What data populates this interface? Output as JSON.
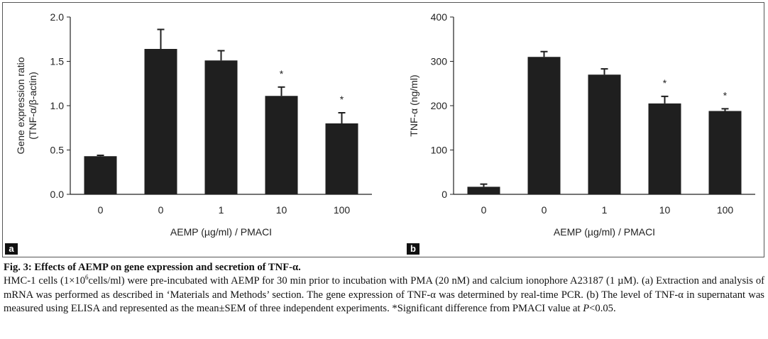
{
  "figure": {
    "panel_a_label": "a",
    "panel_b_label": "b"
  },
  "chart_data": [
    {
      "type": "bar",
      "panel": "a",
      "categories": [
        "0",
        "0",
        "1",
        "10",
        "100"
      ],
      "values": [
        0.43,
        1.64,
        1.51,
        1.11,
        0.8
      ],
      "errors": [
        0.01,
        0.22,
        0.11,
        0.1,
        0.12
      ],
      "significance": [
        "",
        "",
        "",
        "*",
        "*"
      ],
      "xlabel": "AEMP (µg/ml) / PMACI",
      "ylabel": [
        "Gene expression ratio",
        "(TNF-α/β-actin)"
      ],
      "ylim": [
        0,
        2.0
      ],
      "yticks": [
        "0.0",
        "0.5",
        "1.0",
        "1.5",
        "2.0"
      ],
      "bar_color": "#1f1f1f",
      "grid": false,
      "legend": "none"
    },
    {
      "type": "bar",
      "panel": "b",
      "categories": [
        "0",
        "0",
        "1",
        "10",
        "100"
      ],
      "values": [
        17,
        310,
        270,
        205,
        188
      ],
      "errors": [
        6,
        12,
        13,
        16,
        5
      ],
      "significance": [
        "",
        "",
        "",
        "*",
        "*"
      ],
      "xlabel": "AEMP (µg/ml) / PMACI",
      "ylabel": [
        "TNF-α (ng/ml)"
      ],
      "ylim": [
        0,
        400
      ],
      "yticks": [
        "0",
        "100",
        "200",
        "300",
        "400"
      ],
      "bar_color": "#1f1f1f",
      "grid": false,
      "legend": "none"
    }
  ],
  "caption": {
    "title": "Fig. 3: Effects of AEMP on gene expression and secretion of TNF-α.",
    "body_pre": "HMC-1 cells (1×10",
    "body_sup": "6",
    "body_mid": "cells/ml) were pre-incubated with AEMP for 30 min prior to incubation with PMA (20 nM) and calcium ionophore A23187 (1 µM). (a) Extraction and analysis of mRNA was performed as described in ‘Materials and Methods’ section. The gene expression of TNF-α was determined by real-time PCR. (b) The level of TNF-α in supernatant was measured using ELISA and represented as the mean±SEM of three independent experiments. *Significant difference from PMACI value at ",
    "body_p": "P",
    "body_end": "<0.05."
  }
}
